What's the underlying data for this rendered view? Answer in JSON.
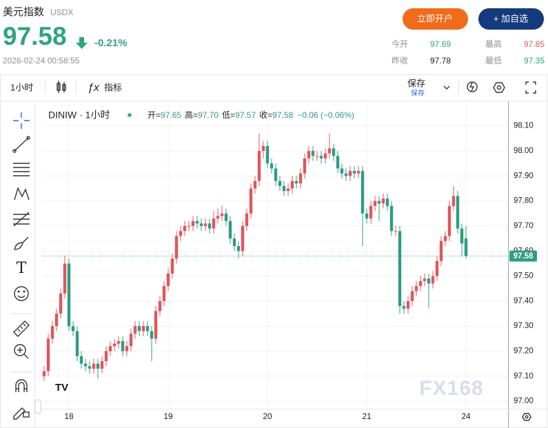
{
  "header": {
    "name": "美元指数",
    "code": "USDX",
    "price": 97.58,
    "change": "-0.21%",
    "time": "2026-02-24 00:58:55",
    "open_account": "立即开户",
    "add_watch": "+ 加自选"
  },
  "stats": [
    {
      "label": "今开",
      "value": 97.69
    },
    {
      "label": "最高",
      "value": 97.85
    },
    {
      "label": "昨收",
      "value": 97.78
    },
    {
      "label": "最低",
      "value": 97.35
    }
  ],
  "toolbar": {
    "interval": "1小时",
    "indicators": "指标",
    "save": "保存",
    "save_sub": "保存"
  },
  "chart_data": {
    "type": "candlestick",
    "legend": {
      "symbol": "DINIW · 1小时",
      "ohlc": [
        {
          "label": "开=",
          "value": "97.65"
        },
        {
          "label": "高=",
          "value": "97.70"
        },
        {
          "label": "低=",
          "value": "97.57"
        },
        {
          "label": "收=",
          "value": "97.58"
        }
      ],
      "change": "−0.06 (−0.06%)"
    },
    "categories": [
      null,
      null,
      null,
      null,
      null,
      null,
      "18",
      null,
      null,
      null,
      null,
      null,
      null,
      null,
      null,
      null,
      null,
      null,
      null,
      null,
      null,
      null,
      null,
      null,
      null,
      null,
      null,
      null,
      null,
      null,
      "19",
      null,
      null,
      null,
      null,
      null,
      null,
      null,
      null,
      null,
      null,
      null,
      null,
      null,
      null,
      null,
      null,
      null,
      null,
      null,
      null,
      null,
      null,
      null,
      "20",
      null,
      null,
      null,
      null,
      null,
      null,
      null,
      null,
      null,
      null,
      null,
      null,
      null,
      null,
      null,
      null,
      null,
      null,
      null,
      null,
      null,
      null,
      null,
      "21",
      null,
      null,
      null,
      null,
      null,
      null,
      null,
      null,
      null,
      null,
      null,
      null,
      null,
      null,
      null,
      null,
      null,
      null,
      null,
      null,
      null,
      null,
      null,
      "24"
    ],
    "open": [
      97.1,
      97.12,
      97.25,
      97.3,
      97.35,
      97.43,
      97.55,
      97.3,
      97.28,
      97.18,
      97.15,
      97.14,
      97.13,
      97.15,
      97.13,
      97.16,
      97.2,
      97.22,
      97.23,
      97.24,
      97.2,
      97.22,
      97.27,
      97.3,
      97.28,
      97.3,
      97.28,
      97.25,
      97.36,
      97.4,
      97.46,
      97.51,
      97.57,
      97.66,
      97.68,
      97.7,
      97.7,
      97.72,
      97.71,
      97.7,
      97.71,
      97.69,
      97.73,
      97.74,
      97.75,
      97.72,
      97.65,
      97.62,
      97.6,
      97.7,
      97.75,
      97.85,
      97.88,
      98.0,
      98.02,
      97.95,
      97.93,
      97.88,
      97.86,
      97.84,
      97.85,
      97.88,
      97.87,
      97.91,
      97.97,
      98.0,
      97.98,
      97.98,
      97.97,
      97.99,
      98.01,
      97.98,
      97.93,
      97.91,
      97.9,
      97.92,
      97.91,
      97.92,
      97.75,
      97.73,
      97.78,
      97.8,
      97.79,
      97.81,
      97.78,
      97.68,
      97.68,
      97.38,
      97.37,
      97.4,
      97.44,
      97.46,
      97.48,
      97.49,
      97.47,
      97.5,
      97.56,
      97.64,
      97.66,
      97.78,
      97.82,
      97.69,
      97.65
    ],
    "high": [
      97.14,
      97.27,
      97.32,
      97.37,
      97.45,
      97.58,
      97.57,
      97.32,
      97.3,
      97.2,
      97.17,
      97.16,
      97.17,
      97.17,
      97.18,
      97.22,
      97.24,
      97.25,
      97.26,
      97.26,
      97.24,
      97.29,
      97.32,
      97.32,
      97.32,
      97.32,
      97.3,
      97.38,
      97.42,
      97.48,
      97.53,
      97.59,
      97.68,
      97.7,
      97.72,
      97.72,
      97.74,
      97.74,
      97.73,
      97.73,
      97.73,
      97.76,
      97.77,
      97.78,
      97.77,
      97.74,
      97.67,
      97.64,
      97.72,
      97.77,
      97.87,
      97.9,
      98.07,
      98.04,
      98.04,
      97.97,
      97.95,
      97.9,
      97.88,
      97.87,
      97.9,
      97.9,
      97.93,
      97.99,
      98.02,
      98.02,
      98.0,
      98.0,
      98.01,
      98.07,
      98.03,
      98.0,
      97.95,
      97.93,
      97.94,
      97.94,
      97.94,
      97.94,
      97.77,
      97.8,
      97.82,
      97.82,
      97.83,
      97.83,
      97.8,
      97.7,
      97.7,
      97.4,
      97.42,
      97.46,
      97.48,
      97.5,
      97.51,
      97.51,
      97.52,
      97.58,
      97.66,
      97.68,
      97.8,
      97.86,
      97.84,
      97.71,
      97.7
    ],
    "low": [
      97.08,
      97.1,
      97.23,
      97.28,
      97.33,
      97.41,
      97.28,
      97.26,
      97.16,
      97.13,
      97.12,
      97.11,
      97.11,
      97.09,
      97.11,
      97.14,
      97.18,
      97.2,
      97.21,
      97.18,
      97.18,
      97.2,
      97.25,
      97.26,
      97.26,
      97.26,
      97.16,
      97.23,
      97.34,
      97.38,
      97.44,
      97.49,
      97.55,
      97.64,
      97.66,
      97.68,
      97.68,
      97.69,
      97.68,
      97.68,
      97.67,
      97.67,
      97.71,
      97.72,
      97.7,
      97.63,
      97.6,
      97.57,
      97.58,
      97.68,
      97.73,
      97.83,
      97.86,
      97.97,
      97.93,
      97.91,
      97.86,
      97.84,
      97.82,
      97.82,
      97.83,
      97.85,
      97.85,
      97.89,
      97.95,
      97.96,
      97.96,
      97.95,
      97.95,
      97.97,
      97.96,
      97.91,
      97.89,
      97.88,
      97.88,
      97.89,
      97.89,
      97.62,
      97.71,
      97.71,
      97.76,
      97.72,
      97.77,
      97.76,
      97.66,
      97.66,
      97.35,
      97.35,
      97.35,
      97.38,
      97.42,
      97.44,
      97.46,
      97.37,
      97.45,
      97.48,
      97.54,
      97.62,
      97.64,
      97.76,
      97.67,
      97.58,
      97.57
    ],
    "close": [
      97.12,
      97.25,
      97.3,
      97.35,
      97.43,
      97.55,
      97.3,
      97.28,
      97.18,
      97.15,
      97.14,
      97.13,
      97.15,
      97.13,
      97.16,
      97.2,
      97.22,
      97.23,
      97.24,
      97.2,
      97.22,
      97.27,
      97.3,
      97.28,
      97.3,
      97.28,
      97.25,
      97.36,
      97.4,
      97.46,
      97.51,
      97.57,
      97.66,
      97.68,
      97.7,
      97.7,
      97.72,
      97.71,
      97.7,
      97.71,
      97.69,
      97.73,
      97.74,
      97.75,
      97.72,
      97.65,
      97.62,
      97.6,
      97.7,
      97.75,
      97.85,
      97.88,
      98.0,
      98.02,
      97.95,
      97.93,
      97.88,
      97.86,
      97.84,
      97.85,
      97.88,
      97.87,
      97.91,
      97.97,
      98.0,
      97.98,
      97.98,
      97.97,
      97.99,
      98.01,
      97.98,
      97.93,
      97.91,
      97.9,
      97.92,
      97.91,
      97.92,
      97.75,
      97.73,
      97.78,
      97.8,
      97.79,
      97.81,
      97.78,
      97.68,
      97.68,
      97.38,
      97.37,
      97.4,
      97.44,
      97.46,
      97.48,
      97.49,
      97.47,
      97.5,
      97.56,
      97.64,
      97.66,
      97.78,
      97.82,
      97.69,
      97.63,
      97.58
    ],
    "up_color": "#e2555b",
    "down_color": "#2e9c85",
    "ylim": [
      96.97,
      98.19
    ],
    "yticks": [
      {
        "value": 97.0,
        "label": "97.00"
      },
      {
        "value": 97.1,
        "label": "97.10"
      },
      {
        "value": 97.2,
        "label": "97.20"
      },
      {
        "value": 97.3,
        "label": "97.30"
      },
      {
        "value": 97.4,
        "label": "97.40"
      },
      {
        "value": 97.5,
        "label": "97.50"
      },
      {
        "value": 97.6,
        "label": "97.60"
      },
      {
        "value": 97.7,
        "label": "97.70"
      },
      {
        "value": 97.8,
        "label": "97.80"
      },
      {
        "value": 97.9,
        "label": "97.90"
      },
      {
        "value": 98.0,
        "label": "98.00"
      },
      {
        "value": 98.1,
        "label": "98.10"
      }
    ],
    "last_price": 97.58,
    "grid": true,
    "watermark": "FX168"
  }
}
